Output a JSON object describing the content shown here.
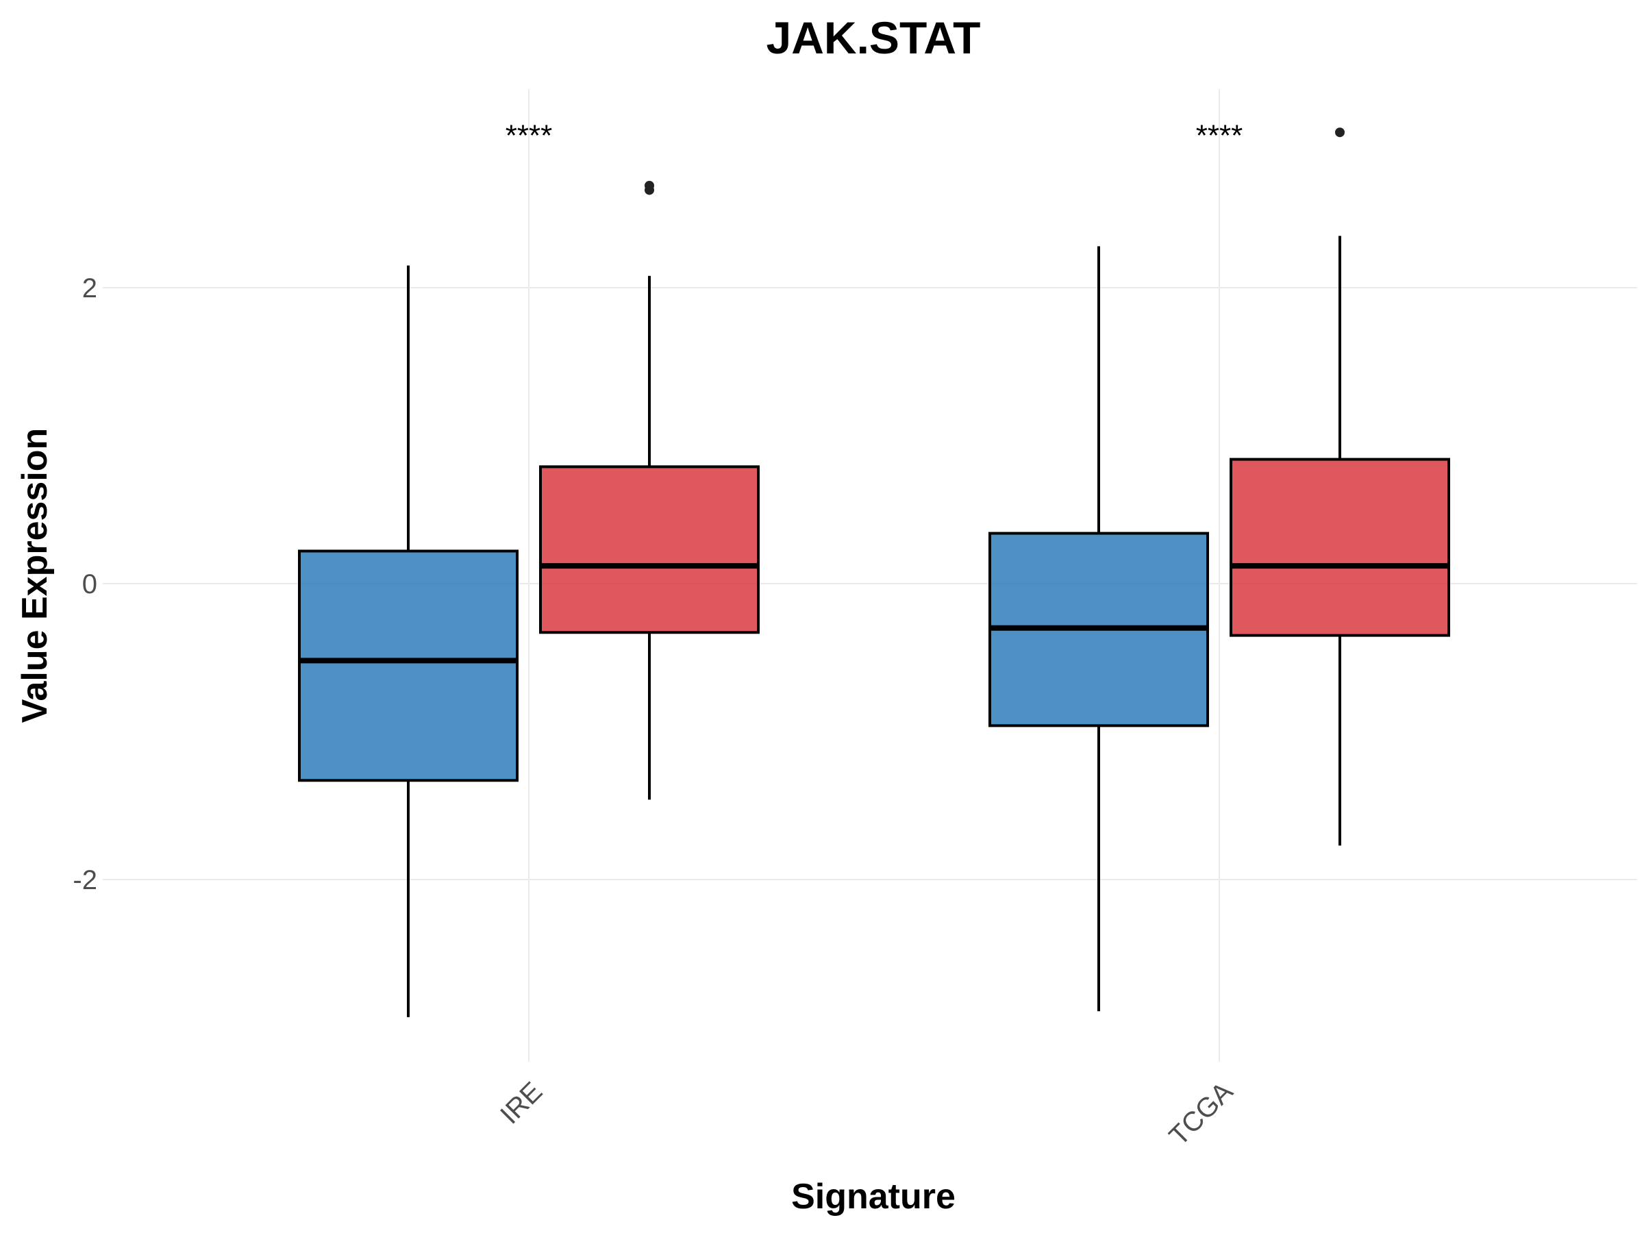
{
  "chart_data": {
    "type": "boxplot",
    "title": "JAK.STAT",
    "xlabel": "Signature",
    "ylabel": "Value Expression",
    "categories": [
      "IRE",
      "TCGA"
    ],
    "y_ticks": [
      -2,
      0,
      2
    ],
    "y_tick_labels": [
      "-2",
      "0",
      "2"
    ],
    "ylim": [
      -3.2,
      3.4
    ],
    "grid": true,
    "legend": "none",
    "groups": [
      {
        "color": "#2E7EBA"
      },
      {
        "color": "#D93B41"
      }
    ],
    "boxes": [
      {
        "category": "IRE",
        "group": 0,
        "whisker_low": -2.93,
        "q1": -1.33,
        "median": -0.52,
        "q3": 0.22,
        "whisker_high": 2.15,
        "outliers": []
      },
      {
        "category": "IRE",
        "group": 1,
        "whisker_low": -1.46,
        "q1": -0.33,
        "median": 0.12,
        "q3": 0.79,
        "whisker_high": 2.08,
        "outliers": [
          2.66,
          2.69
        ]
      },
      {
        "category": "TCGA",
        "group": 0,
        "whisker_low": -2.89,
        "q1": -0.96,
        "median": -0.3,
        "q3": 0.34,
        "whisker_high": 2.28,
        "outliers": []
      },
      {
        "category": "TCGA",
        "group": 1,
        "whisker_low": -1.77,
        "q1": -0.35,
        "median": 0.12,
        "q3": 0.84,
        "whisker_high": 2.35,
        "outliers": [
          3.05
        ]
      }
    ],
    "annotations": [
      {
        "category": "IRE",
        "text": "****",
        "y": 3.1
      },
      {
        "category": "TCGA",
        "text": "****",
        "y": 3.1
      }
    ]
  }
}
